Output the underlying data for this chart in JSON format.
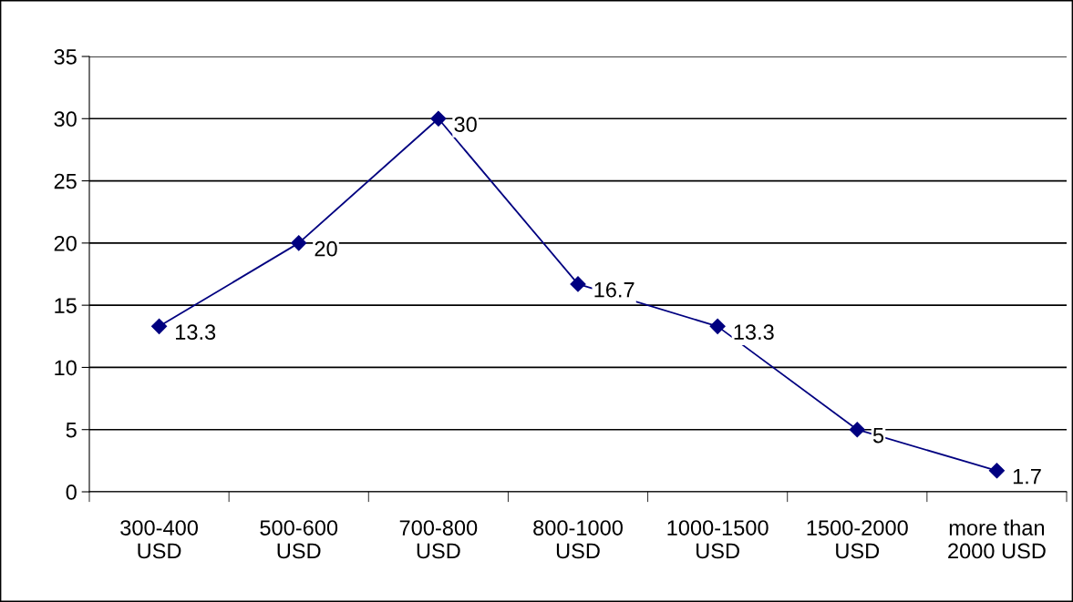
{
  "chart_data": {
    "type": "line",
    "categories": [
      "300-400\nUSD",
      "500-600\nUSD",
      "700-800\nUSD",
      "800-1000\nUSD",
      "1000-1500\nUSD",
      "1500-2000\nUSD",
      "more than\n2000 USD"
    ],
    "series": [
      {
        "color": "#000080",
        "values": [
          13.3,
          20,
          30,
          16.7,
          13.3,
          5,
          1.7
        ]
      }
    ],
    "ylim": [
      0,
      35
    ],
    "yticks": [
      0,
      5,
      10,
      15,
      20,
      25,
      30,
      35
    ],
    "grid": "y",
    "legend": false,
    "marker": "diamond",
    "line_style": "solid",
    "data_labels": true
  }
}
